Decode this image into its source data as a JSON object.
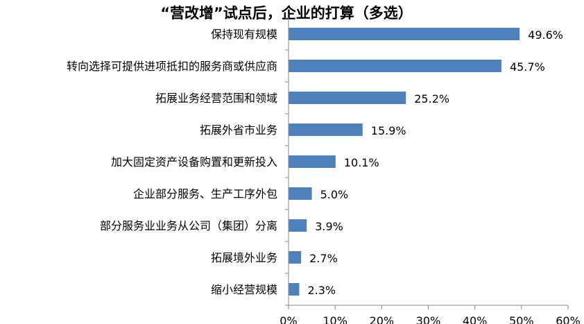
{
  "chart_data": {
    "type": "bar",
    "orientation": "horizontal",
    "title": "“营改增”试点后，企业的打算（多选）",
    "categories": [
      "保持现有规模",
      "转向选择可提供进项抵扣的服务商或供应商",
      "拓展业务经营范围和领域",
      "拓展外省市业务",
      "加大固定资产设备购置和更新投入",
      "企业部分服务、生产工序外包",
      "部分服务业业务从公司（集团）分离",
      "拓展境外业务",
      "缩小经营规模"
    ],
    "values": [
      49.6,
      45.7,
      25.2,
      15.9,
      10.1,
      5.0,
      3.9,
      2.7,
      2.3
    ],
    "value_labels": [
      "49.6%",
      "45.7%",
      "25.2%",
      "15.9%",
      "10.1%",
      "5.0%",
      "3.9%",
      "2.7%",
      "2.3%"
    ],
    "xlim": [
      0,
      60
    ],
    "xticks": [
      0,
      10,
      20,
      30,
      40,
      50,
      60
    ],
    "xtick_labels": [
      "0%",
      "10%",
      "20%",
      "30%",
      "40%",
      "50%",
      "60%"
    ],
    "xlabel": "",
    "ylabel": "",
    "grid": false,
    "legend": "none",
    "bar_color": "#4F81BD"
  }
}
